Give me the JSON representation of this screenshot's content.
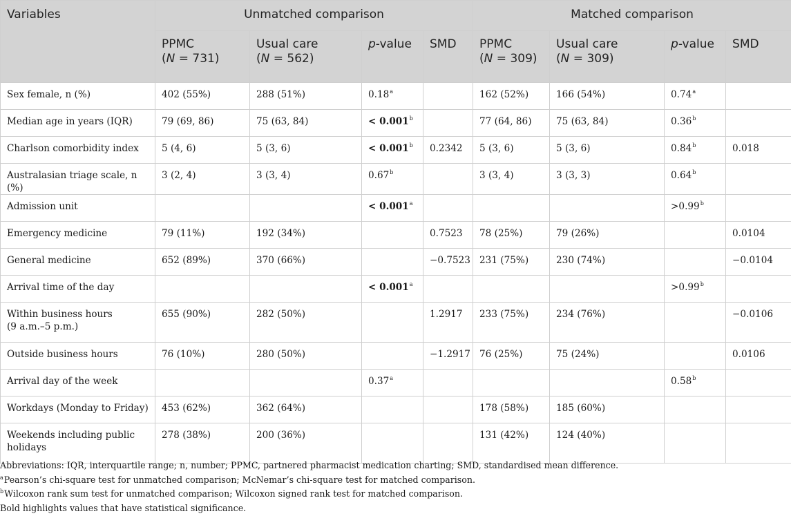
{
  "header": {
    "variables": "Variables",
    "unmatched": "Unmatched comparison",
    "matched": "Matched comparison",
    "cols": {
      "ppmc": "PPMC",
      "ppmc_n_unmatched": "731",
      "usual": "Usual care",
      "usual_n_unmatched": "562",
      "ppmc_n_matched": "309",
      "usual_n_matched": "309",
      "n_prefix": "(",
      "n_italic": "N",
      "n_eq": " = ",
      "n_suffix": ")",
      "p_italic": "p",
      "p_rest": "-value",
      "smd": "SMD"
    }
  },
  "rows": [
    {
      "label": "Sex female, n (%)",
      "u_ppmc": "402 (55%)",
      "u_usual": "288 (51%)",
      "u_p": "0.18",
      "u_p_sup": "a",
      "u_smd": "",
      "m_ppmc": "162 (52%)",
      "m_usual": "166 (54%)",
      "m_p": "0.74",
      "m_p_sup": "a",
      "m_smd": ""
    },
    {
      "label": "Median age in years (IQR)",
      "u_ppmc": "79 (69, 86)",
      "u_usual": "75 (63, 84)",
      "u_p": "< 0.001",
      "u_p_sup": "b",
      "u_smd": "",
      "m_ppmc": "77 (64, 86)",
      "m_usual": "75 (63, 84)",
      "m_p": "0.36",
      "m_p_sup": "b",
      "m_smd": ""
    },
    {
      "label": "Charlson comorbidity index",
      "u_ppmc": "5 (4, 6)",
      "u_usual": "5 (3, 6)",
      "u_p": "< 0.001",
      "u_p_sup": "b",
      "u_smd": "0.2342",
      "m_ppmc": "5 (3, 6)",
      "m_usual": "5 (3, 6)",
      "m_p": "0.84",
      "m_p_sup": "b",
      "m_smd": "0.018"
    },
    {
      "label": "Australasian triage scale, n (%)",
      "u_ppmc": "3 (2, 4)",
      "u_usual": "3 (3, 4)",
      "u_p": "0.67",
      "u_p_sup": "b",
      "u_smd": "",
      "m_ppmc": "3 (3, 4)",
      "m_usual": "3 (3, 3)",
      "m_p": "0.64",
      "m_p_sup": "b",
      "m_smd": ""
    },
    {
      "label": "Admission unit",
      "u_ppmc": "",
      "u_usual": "",
      "u_p": "< 0.001",
      "u_p_sup": "a",
      "u_smd": "",
      "m_ppmc": "",
      "m_usual": "",
      "m_p": ">0.99",
      "m_p_sup": "b",
      "m_smd": ""
    },
    {
      "label": "Emergency medicine",
      "u_ppmc": "79 (11%)",
      "u_usual": "192 (34%)",
      "u_p": "",
      "u_p_sup": "",
      "u_smd": "0.7523",
      "m_ppmc": "78 (25%)",
      "m_usual": "79 (26%)",
      "m_p": "",
      "m_p_sup": "",
      "m_smd": "0.0104"
    },
    {
      "label": "General medicine",
      "u_ppmc": "652 (89%)",
      "u_usual": "370 (66%)",
      "u_p": "",
      "u_p_sup": "",
      "u_smd": "−0.7523",
      "m_ppmc": "231 (75%)",
      "m_usual": "230 (74%)",
      "m_p": "",
      "m_p_sup": "",
      "m_smd": "−0.0104"
    },
    {
      "label": "Arrival time of the day",
      "u_ppmc": "",
      "u_usual": "",
      "u_p": "< 0.001",
      "u_p_sup": "a",
      "u_smd": "",
      "m_ppmc": "",
      "m_usual": "",
      "m_p": ">0.99",
      "m_p_sup": "b",
      "m_smd": ""
    },
    {
      "label": "Within business hours\n(9 a.m.–5 p.m.)",
      "u_ppmc": "655 (90%)",
      "u_usual": "282 (50%)",
      "u_p": "",
      "u_p_sup": "",
      "u_smd": "1.2917",
      "m_ppmc": "233 (75%)",
      "m_usual": "234 (76%)",
      "m_p": "",
      "m_p_sup": "",
      "m_smd": "−0.0106"
    },
    {
      "label": "Outside business hours",
      "u_ppmc": "76 (10%)",
      "u_usual": "280 (50%)",
      "u_p": "",
      "u_p_sup": "",
      "u_smd": "−1.2917",
      "m_ppmc": "76 (25%)",
      "m_usual": "75 (24%)",
      "m_p": "",
      "m_p_sup": "",
      "m_smd": "0.0106"
    },
    {
      "label": "Arrival day of the week",
      "u_ppmc": "",
      "u_usual": "",
      "u_p": "0.37",
      "u_p_sup": "a",
      "u_smd": "",
      "m_ppmc": "",
      "m_usual": "",
      "m_p": "0.58",
      "m_p_sup": "b",
      "m_smd": ""
    },
    {
      "label": "Workdays (Monday to Friday)",
      "u_ppmc": "453 (62%)",
      "u_usual": "362 (64%)",
      "u_p": "",
      "u_p_sup": "",
      "u_smd": "",
      "m_ppmc": "178 (58%)",
      "m_usual": "185 (60%)",
      "m_p": "",
      "m_p_sup": "",
      "m_smd": ""
    },
    {
      "label": "Weekends including public\nholidays",
      "u_ppmc": "278 (38%)",
      "u_usual": "200 (36%)",
      "u_p": "",
      "u_p_sup": "",
      "u_smd": "",
      "m_ppmc": "131 (42%)",
      "m_usual": "124 (40%)",
      "m_p": "",
      "m_p_sup": "",
      "m_smd": ""
    }
  ],
  "footnotes": {
    "abbrev": "Abbreviations: IQR, interquartile range; n, number; PPMC, partnered pharmacist medication charting; SMD, standardised mean difference.",
    "a_mark": "a",
    "a_text": "Pearson’s chi-square test for unmatched comparison; McNemar’s chi-square test for matched comparison.",
    "b_mark": "b",
    "b_text": "Wilcoxon rank sum test for unmatched comparison; Wilcoxon signed rank test for matched comparison.",
    "bold_note": "Bold highlights values that have statistical significance."
  }
}
